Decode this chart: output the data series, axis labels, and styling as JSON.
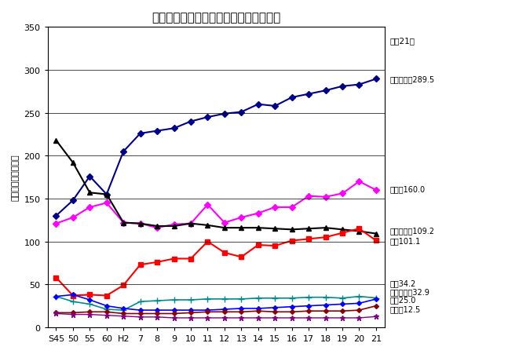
{
  "title": "主な死因別死亡率の年次推移（熊本県）",
  "ylabel": "率（人口１０万対）",
  "right_label_top": "平成21年",
  "x_labels": [
    "S45",
    "50",
    "55",
    "60",
    "H2",
    "7",
    "8",
    "9",
    "10",
    "11",
    "12",
    "13",
    "14",
    "15",
    "16",
    "17",
    "18",
    "19",
    "20",
    "21"
  ],
  "ylim": [
    0,
    350
  ],
  "yticks": [
    0,
    50,
    100,
    150,
    200,
    250,
    300,
    350
  ],
  "right_annotations": [
    {
      "label": "悪性新生物289.5",
      "y": 289.5
    },
    {
      "label": "心疾患160.0",
      "y": 162
    },
    {
      "label": "脳血管疾患109.2",
      "y": 113
    },
    {
      "label": "肺炎101.1",
      "y": 101
    },
    {
      "label": "老衰34.2",
      "y": 52
    },
    {
      "label": "不慮の事故32.9",
      "y": 42
    },
    {
      "label": "自殺25.0",
      "y": 33
    },
    {
      "label": "肝疾患12.5",
      "y": 22
    }
  ],
  "series": [
    {
      "name": "悪性新生物289.5",
      "color": "#00008B",
      "marker": "D",
      "markersize": 4,
      "linewidth": 1.5,
      "values": [
        130,
        148,
        176,
        155,
        205,
        226,
        229,
        232,
        240,
        245,
        249,
        251,
        260,
        258,
        268,
        272,
        276,
        281,
        283,
        289.5
      ]
    },
    {
      "name": "心疾患160.0",
      "color": "#FF00FF",
      "marker": "D",
      "markersize": 4,
      "linewidth": 1.5,
      "values": [
        121,
        128,
        140,
        145,
        122,
        121,
        116,
        120,
        121,
        143,
        122,
        128,
        133,
        140,
        140,
        153,
        152,
        156,
        170,
        160
      ]
    },
    {
      "name": "脳血管疾患109.2",
      "color": "#000000",
      "marker": "^",
      "markersize": 5,
      "linewidth": 1.5,
      "values": [
        218,
        192,
        157,
        155,
        122,
        121,
        118,
        118,
        121,
        119,
        116,
        116,
        116,
        115,
        114,
        115,
        116,
        114,
        112,
        109.2
      ]
    },
    {
      "name": "肺炎101.1",
      "color": "#FF0000",
      "marker": "s",
      "markersize": 5,
      "linewidth": 1.5,
      "values": [
        58,
        37,
        38,
        37,
        49,
        73,
        76,
        80,
        80,
        100,
        87,
        82,
        96,
        95,
        101,
        103,
        105,
        110,
        115,
        101.1
      ]
    },
    {
      "name": "老衰34.2",
      "color": "#008B8B",
      "marker": "+",
      "markersize": 6,
      "linewidth": 1.2,
      "values": [
        36,
        30,
        27,
        21,
        20,
        30,
        31,
        32,
        32,
        33,
        33,
        33,
        34,
        34,
        34,
        35,
        35,
        34,
        36,
        34.2
      ]
    },
    {
      "name": "不慮の事故32.9",
      "color": "#0000FF",
      "marker": "D",
      "markersize": 3,
      "linewidth": 1.2,
      "values": [
        36,
        38,
        32,
        25,
        22,
        20,
        20,
        20,
        20,
        20,
        21,
        22,
        22,
        23,
        24,
        25,
        26,
        27,
        28,
        32.9
      ]
    },
    {
      "name": "自殺25.0",
      "color": "#8B0000",
      "marker": "D",
      "markersize": 3,
      "linewidth": 1.2,
      "values": [
        17,
        17,
        18,
        18,
        16,
        16,
        16,
        16,
        17,
        18,
        18,
        18,
        19,
        18,
        18,
        19,
        19,
        19,
        20,
        25
      ]
    },
    {
      "name": "肝疾患12.5",
      "color": "#800080",
      "marker": "*",
      "markersize": 5,
      "linewidth": 1.0,
      "values": [
        16,
        15,
        15,
        14,
        13,
        12,
        12,
        11,
        11,
        11,
        11,
        11,
        11,
        11,
        11,
        11,
        11,
        11,
        11,
        12.5
      ]
    }
  ]
}
